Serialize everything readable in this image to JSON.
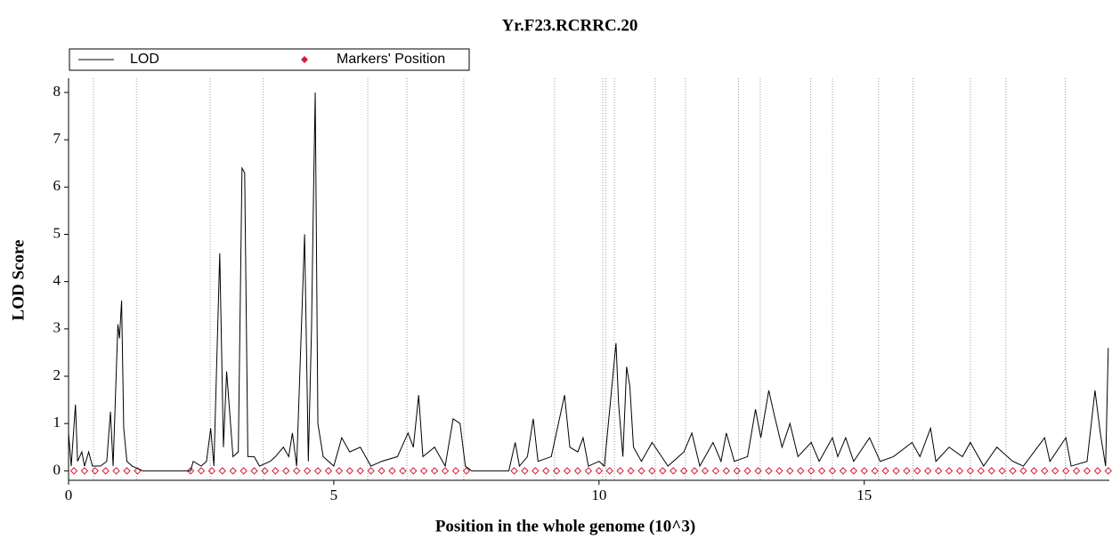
{
  "chart_data": {
    "type": "line",
    "title": "Yr.F23.RCRRC.20",
    "x_label": "Position in the whole genome (10^3)",
    "y_label": "LOD Score",
    "xlim": [
      0,
      19.62
    ],
    "ylim": [
      -0.2,
      8.3
    ],
    "xticks": [
      0,
      5,
      10,
      15
    ],
    "yticks": [
      0,
      1,
      2,
      3,
      4,
      5,
      6,
      7,
      8
    ],
    "boundaries": [
      0.47,
      1.28,
      2.67,
      3.67,
      5.64,
      6.38,
      7.45,
      9.16,
      10.07,
      10.13,
      10.29,
      11.06,
      11.63,
      12.63,
      13.04,
      13.99,
      14.4,
      15.27,
      15.92,
      17.0,
      17.67,
      18.79
    ],
    "series": [
      {
        "name": "LOD",
        "color": "#000000",
        "marker": "line",
        "x": [
          0,
          0.05,
          0.13,
          0.17,
          0.25,
          0.3,
          0.38,
          0.45,
          0.6,
          0.72,
          0.79,
          0.84,
          0.93,
          0.96,
          1.0,
          1.04,
          1.1,
          1.2,
          1.3,
          1.4,
          2.3,
          2.35,
          2.5,
          2.6,
          2.68,
          2.74,
          2.85,
          2.92,
          2.98,
          3.04,
          3.1,
          3.2,
          3.27,
          3.32,
          3.38,
          3.5,
          3.6,
          3.8,
          3.9,
          4.05,
          4.15,
          4.22,
          4.3,
          4.45,
          4.52,
          4.58,
          4.62,
          4.65,
          4.7,
          4.8,
          5.0,
          5.15,
          5.3,
          5.5,
          5.7,
          5.9,
          6.2,
          6.4,
          6.5,
          6.6,
          6.68,
          6.9,
          7.1,
          7.25,
          7.38,
          7.48,
          7.6,
          8.3,
          8.42,
          8.5,
          8.65,
          8.76,
          8.85,
          9.1,
          9.35,
          9.45,
          9.6,
          9.7,
          9.8,
          10.0,
          10.1,
          10.32,
          10.37,
          10.45,
          10.52,
          10.58,
          10.65,
          10.8,
          11.0,
          11.3,
          11.6,
          11.75,
          11.9,
          12.15,
          12.3,
          12.4,
          12.55,
          12.8,
          12.95,
          13.05,
          13.2,
          13.3,
          13.45,
          13.6,
          13.75,
          14.0,
          14.15,
          14.4,
          14.5,
          14.65,
          14.8,
          15.1,
          15.3,
          15.55,
          15.9,
          16.05,
          16.25,
          16.35,
          16.6,
          16.85,
          17.0,
          17.25,
          17.5,
          17.8,
          18.0,
          18.4,
          18.5,
          18.8,
          18.9,
          19.2,
          19.35,
          19.45,
          19.55,
          19.6
        ],
        "values": [
          0.8,
          0.1,
          1.4,
          0.2,
          0.4,
          0.1,
          0.4,
          0.1,
          0.1,
          0.2,
          1.25,
          0.1,
          3.1,
          2.8,
          3.6,
          0.9,
          0.2,
          0.1,
          0.05,
          0,
          0,
          0.2,
          0.1,
          0.2,
          0.9,
          0.1,
          4.6,
          0.5,
          2.1,
          1.2,
          0.3,
          0.4,
          6.4,
          6.3,
          0.3,
          0.3,
          0.1,
          0.2,
          0.3,
          0.5,
          0.3,
          0.8,
          0.1,
          5.0,
          0.2,
          3.0,
          6.0,
          8.0,
          1.0,
          0.3,
          0.1,
          0.7,
          0.4,
          0.5,
          0.1,
          0.2,
          0.3,
          0.8,
          0.5,
          1.6,
          0.3,
          0.5,
          0.1,
          1.1,
          1.0,
          0.1,
          0,
          0,
          0.6,
          0.1,
          0.3,
          1.1,
          0.2,
          0.3,
          1.6,
          0.5,
          0.4,
          0.7,
          0.1,
          0.2,
          0.1,
          2.7,
          1.4,
          0.3,
          2.2,
          1.8,
          0.5,
          0.2,
          0.6,
          0.1,
          0.4,
          0.8,
          0.1,
          0.6,
          0.2,
          0.8,
          0.2,
          0.3,
          1.3,
          0.7,
          1.7,
          1.2,
          0.5,
          1.0,
          0.3,
          0.6,
          0.2,
          0.7,
          0.3,
          0.7,
          0.2,
          0.7,
          0.2,
          0.3,
          0.6,
          0.3,
          0.9,
          0.2,
          0.5,
          0.3,
          0.6,
          0.1,
          0.5,
          0.2,
          0.1,
          0.7,
          0.2,
          0.7,
          0.1,
          0.2,
          1.7,
          0.8,
          0.1,
          2.6
        ]
      },
      {
        "name": "Markers' Position",
        "color": "#d81b3c",
        "marker": "diamond",
        "x": [
          0.1,
          0.3,
          0.5,
          0.7,
          0.9,
          1.1,
          1.3,
          2.3,
          2.5,
          2.7,
          2.9,
          3.1,
          3.3,
          3.5,
          3.7,
          3.9,
          4.1,
          4.3,
          4.5,
          4.7,
          4.9,
          5.1,
          5.3,
          5.5,
          5.7,
          5.9,
          6.1,
          6.3,
          6.5,
          6.7,
          6.9,
          7.1,
          7.3,
          7.5,
          8.4,
          8.6,
          8.8,
          9.0,
          9.2,
          9.4,
          9.6,
          9.8,
          10.0,
          10.2,
          10.4,
          10.6,
          10.8,
          11.0,
          11.2,
          11.4,
          11.6,
          11.8,
          12.0,
          12.2,
          12.4,
          12.6,
          12.8,
          13.0,
          13.2,
          13.4,
          13.6,
          13.8,
          14.0,
          14.2,
          14.4,
          14.6,
          14.8,
          15.0,
          15.2,
          15.4,
          15.6,
          15.8,
          16.0,
          16.2,
          16.4,
          16.6,
          16.8,
          17.0,
          17.2,
          17.4,
          17.6,
          17.8,
          18.0,
          18.2,
          18.4,
          18.6,
          18.8,
          19.0,
          19.2,
          19.4,
          19.6
        ],
        "values": [
          0,
          0,
          0,
          0,
          0,
          0,
          0,
          0,
          0,
          0,
          0,
          0,
          0,
          0,
          0,
          0,
          0,
          0,
          0,
          0,
          0,
          0,
          0,
          0,
          0,
          0,
          0,
          0,
          0,
          0,
          0,
          0,
          0,
          0,
          0,
          0,
          0,
          0,
          0,
          0,
          0,
          0,
          0,
          0,
          0,
          0,
          0,
          0,
          0,
          0,
          0,
          0,
          0,
          0,
          0,
          0,
          0,
          0,
          0,
          0,
          0,
          0,
          0,
          0,
          0,
          0,
          0,
          0,
          0,
          0,
          0,
          0,
          0,
          0,
          0,
          0,
          0,
          0,
          0,
          0,
          0,
          0,
          0,
          0,
          0,
          0,
          0,
          0,
          0,
          0,
          0
        ]
      }
    ]
  }
}
